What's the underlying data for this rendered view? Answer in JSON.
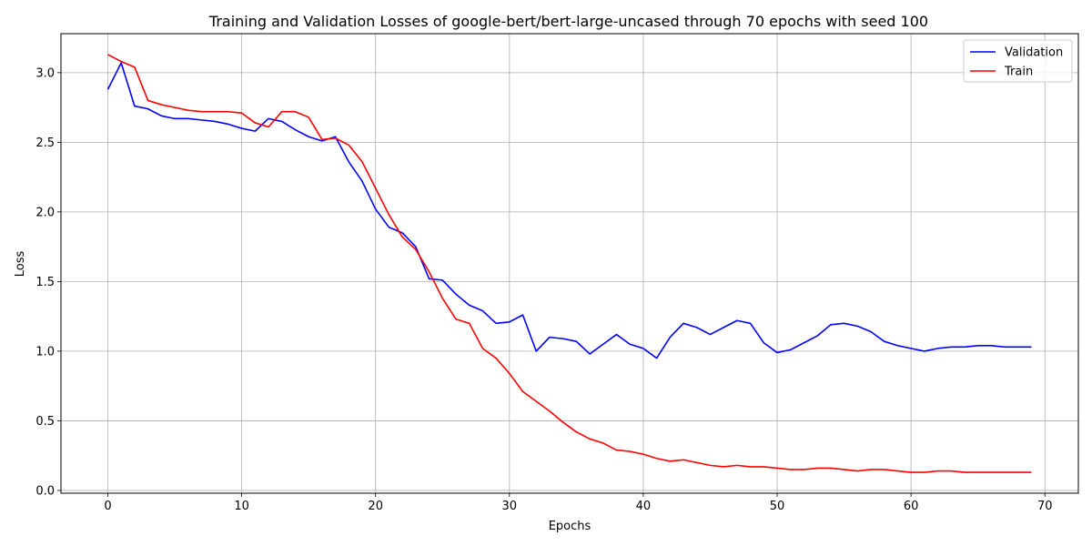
{
  "chart_data": {
    "type": "line",
    "title": "Training and Validation Losses of google-bert/bert-large-uncased through 70 epochs with seed 100",
    "xlabel": "Epochs",
    "ylabel": "Loss",
    "xlim": [
      -3.5,
      72.5
    ],
    "ylim": [
      -0.02,
      3.28
    ],
    "x_ticks": [
      0,
      10,
      20,
      30,
      40,
      50,
      60,
      70
    ],
    "y_ticks": [
      0.0,
      0.5,
      1.0,
      1.5,
      2.0,
      2.5,
      3.0
    ],
    "grid": true,
    "legend_position": "top-right",
    "x": [
      0,
      1,
      2,
      3,
      4,
      5,
      6,
      7,
      8,
      9,
      10,
      11,
      12,
      13,
      14,
      15,
      16,
      17,
      18,
      19,
      20,
      21,
      22,
      23,
      24,
      25,
      26,
      27,
      28,
      29,
      30,
      31,
      32,
      33,
      34,
      35,
      36,
      37,
      38,
      39,
      40,
      41,
      42,
      43,
      44,
      45,
      46,
      47,
      48,
      49,
      50,
      51,
      52,
      53,
      54,
      55,
      56,
      57,
      58,
      59,
      60,
      61,
      62,
      63,
      64,
      65,
      66,
      67,
      68,
      69
    ],
    "series": [
      {
        "name": "Validation",
        "color": "#0000ff",
        "values": [
          2.88,
          3.07,
          2.76,
          2.74,
          2.69,
          2.67,
          2.67,
          2.66,
          2.65,
          2.63,
          2.6,
          2.58,
          2.67,
          2.65,
          2.59,
          2.54,
          2.51,
          2.54,
          2.36,
          2.22,
          2.02,
          1.89,
          1.85,
          1.75,
          1.52,
          1.51,
          1.41,
          1.33,
          1.29,
          1.2,
          1.21,
          1.26,
          1.0,
          1.1,
          1.09,
          1.07,
          0.98,
          1.05,
          1.12,
          1.05,
          1.02,
          0.95,
          1.1,
          1.2,
          1.17,
          1.12,
          1.17,
          1.22,
          1.2,
          1.06,
          0.99,
          1.01,
          1.06,
          1.11,
          1.19,
          1.2,
          1.18,
          1.14,
          1.07,
          1.04,
          1.02,
          1.0,
          1.02,
          1.03,
          1.03,
          1.04,
          1.04,
          1.03,
          1.03,
          1.03
        ]
      },
      {
        "name": "Train",
        "color": "#ff0000",
        "values": [
          3.13,
          3.08,
          3.04,
          2.8,
          2.77,
          2.75,
          2.73,
          2.72,
          2.72,
          2.72,
          2.71,
          2.64,
          2.61,
          2.72,
          2.72,
          2.68,
          2.52,
          2.53,
          2.48,
          2.36,
          2.17,
          1.98,
          1.82,
          1.73,
          1.57,
          1.38,
          1.23,
          1.2,
          1.02,
          0.95,
          0.84,
          0.71,
          0.64,
          0.57,
          0.49,
          0.42,
          0.37,
          0.34,
          0.29,
          0.28,
          0.26,
          0.23,
          0.21,
          0.22,
          0.2,
          0.18,
          0.17,
          0.18,
          0.17,
          0.17,
          0.16,
          0.15,
          0.15,
          0.16,
          0.16,
          0.15,
          0.14,
          0.15,
          0.15,
          0.14,
          0.13,
          0.13,
          0.14,
          0.14,
          0.13,
          0.13,
          0.13,
          0.13,
          0.13,
          0.13
        ]
      }
    ]
  }
}
